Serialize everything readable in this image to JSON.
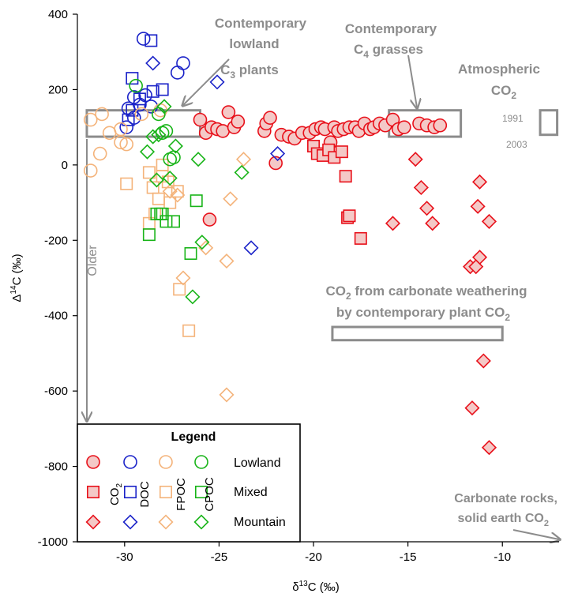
{
  "colors": {
    "co2": "#e8101a",
    "co2_fill": "#f4c9c7",
    "doc": "#1a22c8",
    "fpoc": "#f4b37a",
    "cpoc": "#18b418",
    "annotation": "#8c8c8c",
    "axis": "#000000"
  },
  "chart_data": {
    "type": "scatter",
    "xlabel": "δ13C (‰)",
    "ylabel": "Δ14C (‰)",
    "xlim": [
      -32.5,
      -7
    ],
    "ylim": [
      -1000,
      400
    ],
    "xticks": [
      -30,
      -25,
      -20,
      -15,
      -10
    ],
    "yticks": [
      400,
      200,
      0,
      -200,
      -400,
      -600,
      -800,
      -1000
    ],
    "grid": false,
    "legend_position": "bottom-left",
    "legend": {
      "title": "Legend",
      "columns": [
        "CO2",
        "DOC",
        "FPOC",
        "CPOC"
      ],
      "rows": [
        "Lowland",
        "Mixed",
        "Mountain"
      ]
    },
    "series": [
      {
        "name": "CO2",
        "type": "Lowland",
        "points": [
          [
            -26,
            120
          ],
          [
            -25.7,
            85
          ],
          [
            -25.4,
            100
          ],
          [
            -25.1,
            95
          ],
          [
            -24.8,
            90
          ],
          [
            -24.5,
            140
          ],
          [
            -24.2,
            100
          ],
          [
            -24,
            115
          ],
          [
            -22.6,
            90
          ],
          [
            -22.5,
            110
          ],
          [
            -22.3,
            125
          ],
          [
            -22,
            5
          ],
          [
            -21.7,
            80
          ],
          [
            -21.3,
            75
          ],
          [
            -21,
            70
          ],
          [
            -20.6,
            85
          ],
          [
            -20.2,
            85
          ],
          [
            -19.9,
            95
          ],
          [
            -19.6,
            100
          ],
          [
            -19.4,
            95
          ],
          [
            -19.1,
            60
          ],
          [
            -18.9,
            100
          ],
          [
            -18.7,
            90
          ],
          [
            -18.4,
            95
          ],
          [
            -18.1,
            100
          ],
          [
            -17.8,
            100
          ],
          [
            -17.6,
            90
          ],
          [
            -17.3,
            110
          ],
          [
            -17,
            95
          ],
          [
            -16.8,
            100
          ],
          [
            -16.5,
            110
          ],
          [
            -16.2,
            105
          ],
          [
            -15.8,
            120
          ],
          [
            -15.5,
            95
          ],
          [
            -15.2,
            100
          ],
          [
            -14.4,
            110
          ],
          [
            -14,
            105
          ],
          [
            -13.6,
            100
          ],
          [
            -13.3,
            105
          ],
          [
            -25.5,
            -145
          ]
        ]
      },
      {
        "name": "CO2",
        "type": "Mixed",
        "points": [
          [
            -20,
            50
          ],
          [
            -19.8,
            30
          ],
          [
            -19.5,
            25
          ],
          [
            -19.2,
            40
          ],
          [
            -18.9,
            20
          ],
          [
            -18.5,
            35
          ],
          [
            -18.3,
            -30
          ],
          [
            -18.2,
            -140
          ],
          [
            -18.1,
            -135
          ],
          [
            -17.5,
            -195
          ]
        ]
      },
      {
        "name": "CO2",
        "type": "Mountain",
        "points": [
          [
            -15.8,
            -155
          ],
          [
            -14.6,
            15
          ],
          [
            -14.3,
            -60
          ],
          [
            -14,
            -115
          ],
          [
            -13.7,
            -155
          ],
          [
            -11.7,
            -270
          ],
          [
            -11.6,
            -645
          ],
          [
            -11.3,
            -110
          ],
          [
            -11.2,
            -245
          ],
          [
            -11.2,
            -45
          ],
          [
            -11,
            -520
          ],
          [
            -10.7,
            -150
          ],
          [
            -10.7,
            -750
          ],
          [
            -11.4,
            -270
          ]
        ]
      },
      {
        "name": "DOC",
        "type": "Lowland",
        "points": [
          [
            -29,
            335
          ],
          [
            -27.2,
            245
          ],
          [
            -26.9,
            270
          ],
          [
            -28.6,
            155
          ],
          [
            -29.5,
            180
          ],
          [
            -29.8,
            150
          ],
          [
            -29.9,
            100
          ],
          [
            -29.5,
            125
          ],
          [
            -29.2,
            160
          ],
          [
            -28.9,
            185
          ]
        ]
      },
      {
        "name": "DOC",
        "type": "Mixed",
        "points": [
          [
            -28.6,
            330
          ],
          [
            -29.6,
            230
          ],
          [
            -28.5,
            195
          ],
          [
            -28,
            200
          ],
          [
            -29.6,
            145
          ],
          [
            -29.8,
            120
          ],
          [
            -29.2,
            175
          ]
        ]
      },
      {
        "name": "DOC",
        "type": "Mountain",
        "points": [
          [
            -28.5,
            270
          ],
          [
            -25.1,
            220
          ],
          [
            -21.9,
            30
          ],
          [
            -23.3,
            -220
          ]
        ]
      },
      {
        "name": "FPOC",
        "type": "Lowland",
        "points": [
          [
            -31.8,
            -15
          ],
          [
            -31.3,
            30
          ],
          [
            -31.8,
            120
          ],
          [
            -31.2,
            135
          ],
          [
            -30.8,
            85
          ],
          [
            -30.2,
            95
          ],
          [
            -30.2,
            60
          ],
          [
            -29.9,
            55
          ],
          [
            -29.1,
            135
          ],
          [
            -28.1,
            145
          ]
        ]
      },
      {
        "name": "FPOC",
        "type": "Mixed",
        "points": [
          [
            -29.9,
            -50
          ],
          [
            -28.7,
            -20
          ],
          [
            -28.5,
            -60
          ],
          [
            -28.2,
            -90
          ],
          [
            -28,
            -30
          ],
          [
            -27.7,
            -45
          ],
          [
            -27.6,
            -100
          ],
          [
            -28.7,
            -155
          ],
          [
            -27.2,
            -70
          ],
          [
            -27.1,
            -330
          ],
          [
            -26.6,
            -440
          ],
          [
            -28.4,
            -130
          ],
          [
            -28,
            0
          ]
        ]
      },
      {
        "name": "FPOC",
        "type": "Mountain",
        "points": [
          [
            -27.6,
            -70
          ],
          [
            -27.2,
            -80
          ],
          [
            -26.9,
            -300
          ],
          [
            -25.7,
            -220
          ],
          [
            -24.4,
            -90
          ],
          [
            -23.7,
            15
          ],
          [
            -24.6,
            -255
          ],
          [
            -24.6,
            -610
          ]
        ]
      },
      {
        "name": "CPOC",
        "type": "Lowland",
        "points": [
          [
            -29.4,
            210
          ],
          [
            -28.2,
            135
          ],
          [
            -28,
            85
          ],
          [
            -27.6,
            15
          ],
          [
            -27.8,
            90
          ],
          [
            -27.4,
            20
          ]
        ]
      },
      {
        "name": "CPOC",
        "type": "Mixed",
        "points": [
          [
            -28.7,
            -185
          ],
          [
            -28.1,
            -130
          ],
          [
            -27.8,
            -150
          ],
          [
            -27.4,
            -150
          ],
          [
            -26.2,
            -95
          ],
          [
            -26.5,
            -235
          ],
          [
            -28,
            -130
          ],
          [
            -28.3,
            -130
          ]
        ]
      },
      {
        "name": "CPOC",
        "type": "Mountain",
        "points": [
          [
            -28.8,
            35
          ],
          [
            -27.3,
            50
          ],
          [
            -27.6,
            -35
          ],
          [
            -26.1,
            15
          ],
          [
            -23.8,
            -20
          ],
          [
            -25.9,
            -205
          ],
          [
            -26.4,
            -350
          ],
          [
            -28.5,
            75
          ],
          [
            -28.2,
            80
          ],
          [
            -27.9,
            155
          ],
          [
            -28.3,
            -40
          ]
        ]
      }
    ],
    "annotations": {
      "lowland_c3": {
        "lines": [
          "Contemporary",
          "lowland",
          "C3 plants"
        ],
        "range_x": [
          -32,
          -26
        ],
        "range_y": [
          75,
          145
        ]
      },
      "c4_grasses": {
        "lines": [
          "Contemporary",
          "C4 grasses"
        ],
        "range_x": [
          -16,
          -12.2
        ],
        "range_y": [
          75,
          145
        ]
      },
      "atmospheric": {
        "lines": [
          "Atmospheric",
          "CO2"
        ],
        "year_labels": [
          "1991",
          "2003"
        ],
        "range_x": [
          -8,
          -7.1
        ],
        "range_y": [
          80,
          145
        ]
      },
      "carbonate_weathering": {
        "lines": [
          "CO2 from carbonate weathering",
          "by contemporary plant CO2"
        ],
        "range_x": [
          -19,
          -10
        ],
        "range_y": [
          -465,
          -430
        ]
      },
      "older": {
        "text": "Older"
      },
      "carbonate_rocks": {
        "lines": [
          "Carbonate rocks,",
          "solid earth CO2"
        ]
      }
    }
  }
}
